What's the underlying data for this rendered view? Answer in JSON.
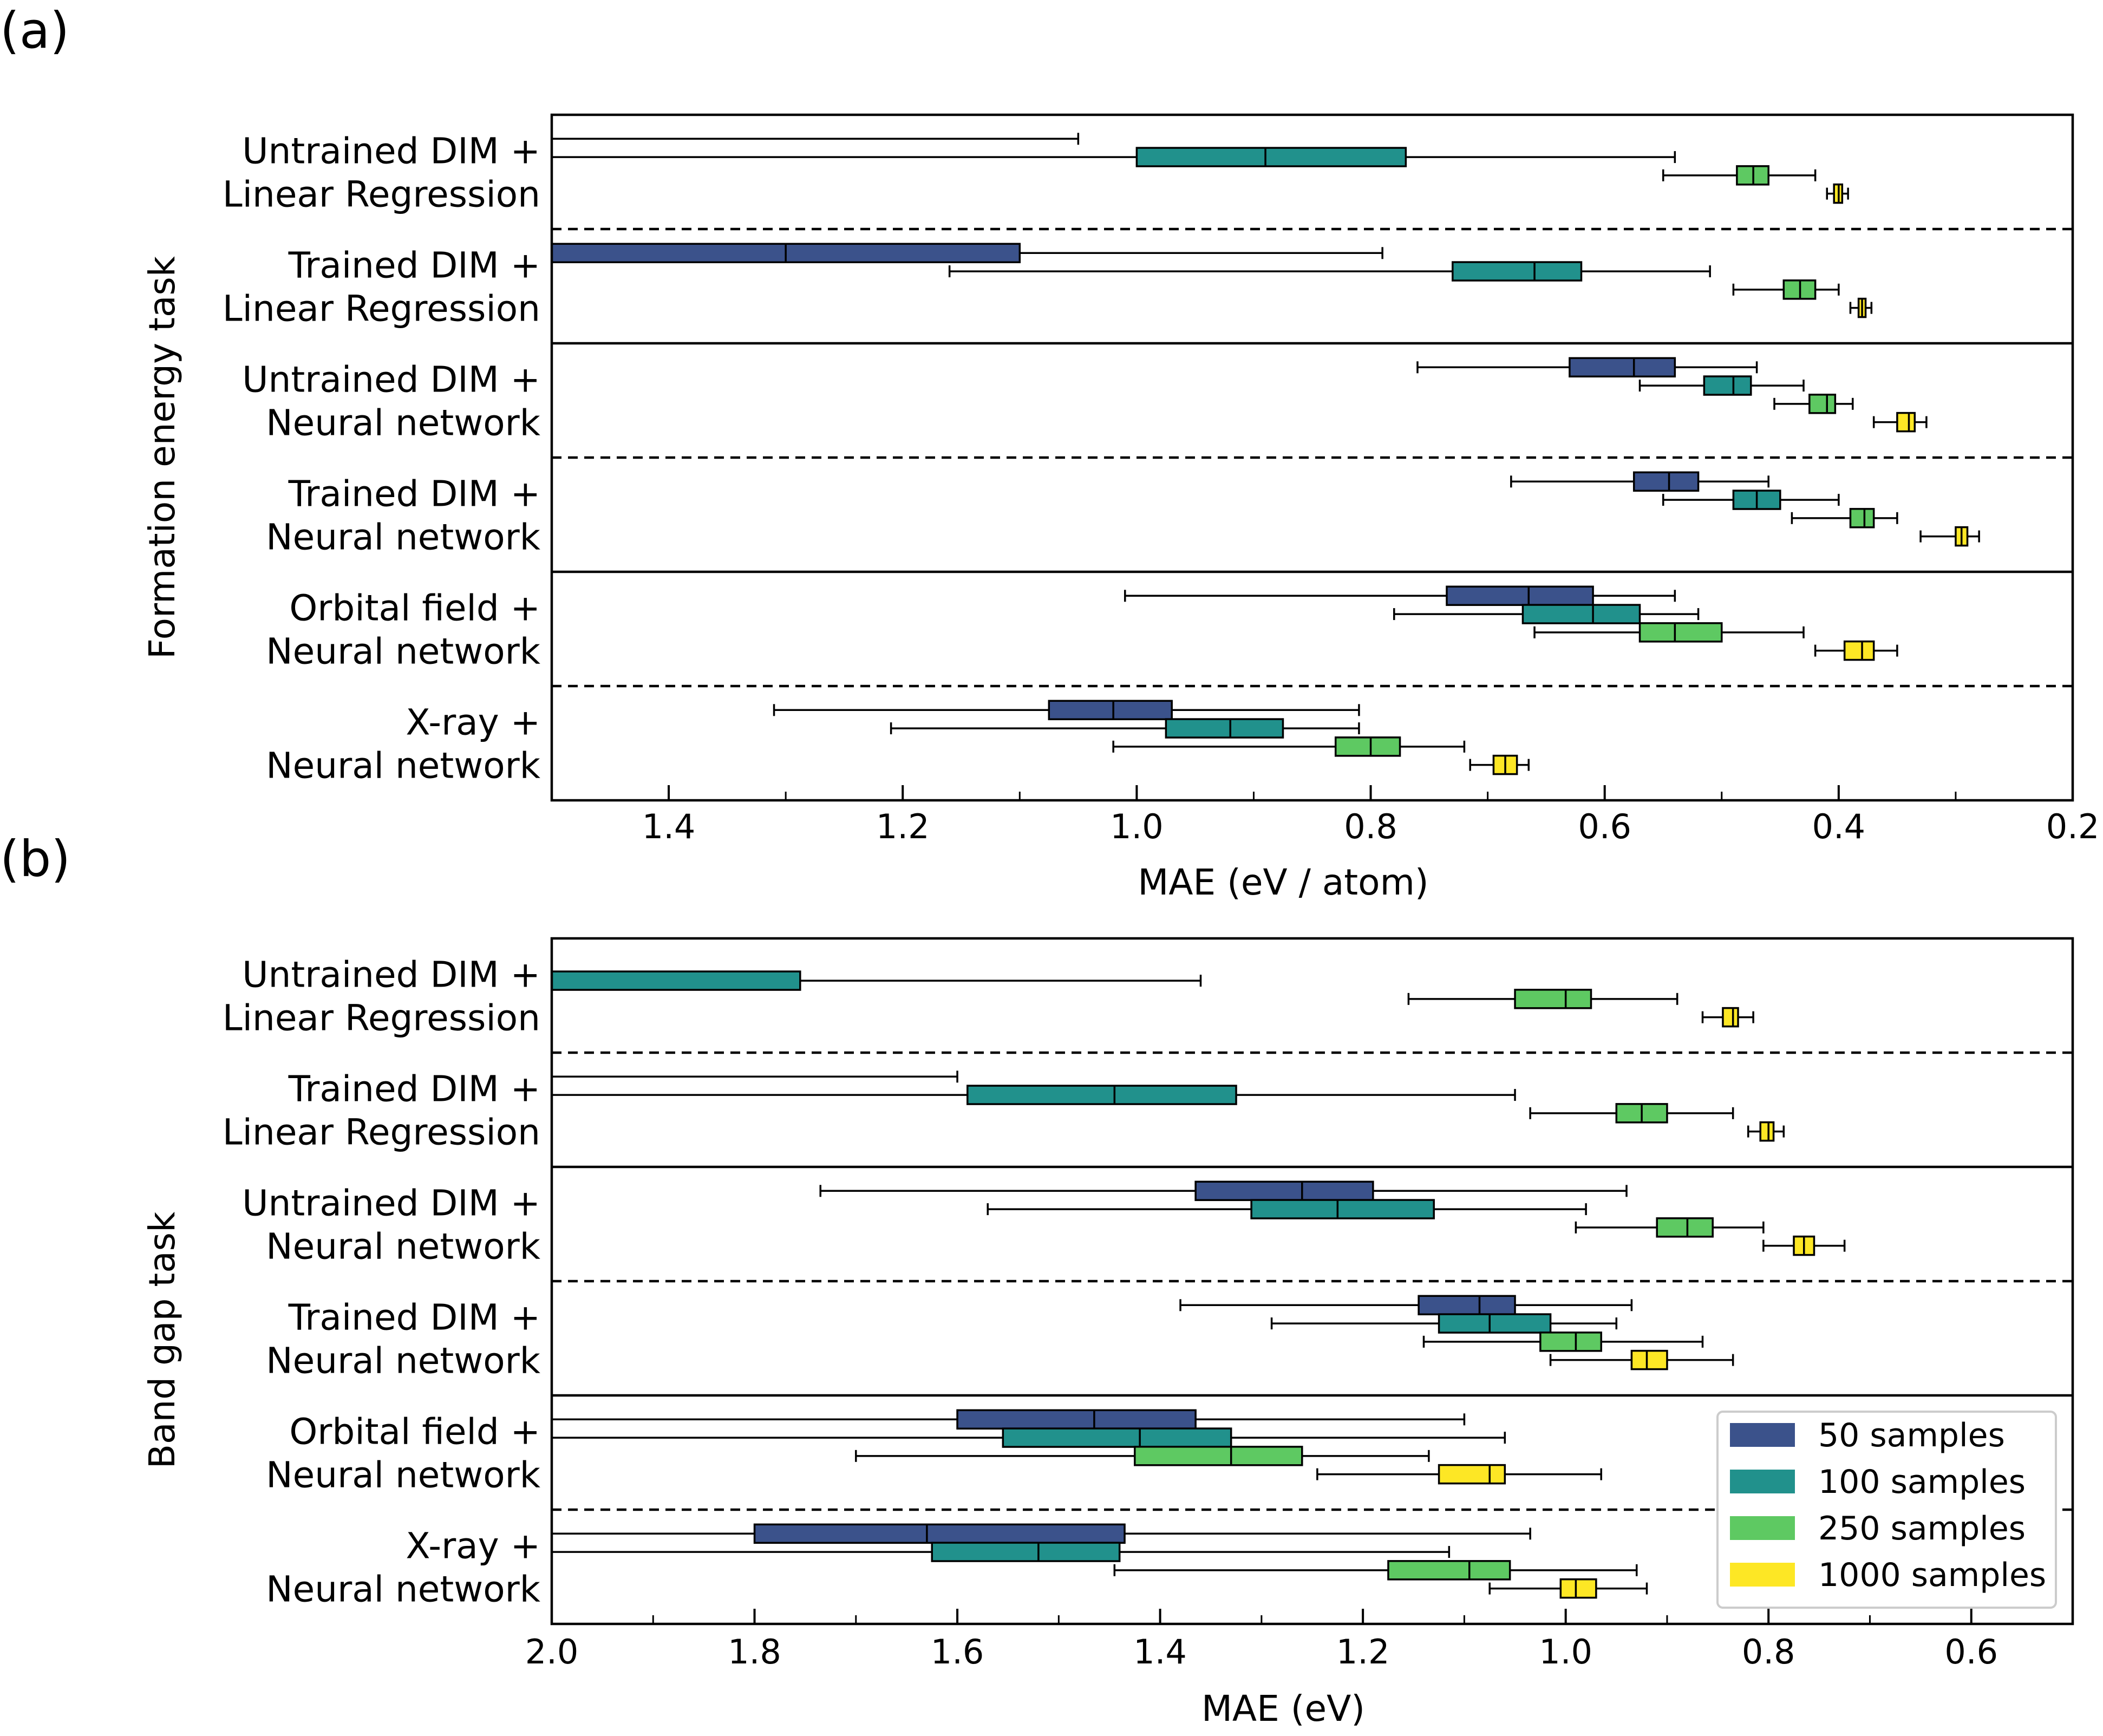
{
  "legend": [
    {
      "label": "50 samples",
      "color": "#3b528b"
    },
    {
      "label": "100 samples",
      "color": "#21918c"
    },
    {
      "label": "250 samples",
      "color": "#5ec962"
    },
    {
      "label": "1000 samples",
      "color": "#fde725"
    }
  ],
  "chart_data": [
    {
      "type": "boxplot",
      "panel_label": "(a)",
      "xlabel": "MAE (eV / atom)",
      "ylabel": "Formation energy task",
      "xlim": [
        1.5,
        0.2
      ],
      "x_inverted": true,
      "xticks": [
        "1.4",
        "1.2",
        "1.0",
        "0.8",
        "0.6",
        "0.4",
        "0.2"
      ],
      "xtick_values": [
        1.4,
        1.2,
        1.0,
        0.8,
        0.6,
        0.4,
        0.2
      ],
      "groups": [
        {
          "label_lines": [
            "Untrained DIM +",
            "Linear Regression"
          ],
          "boxes": [
            {
              "series": "50 samples",
              "whislo": 1.05,
              "q1": 1.5,
              "med": 1.5,
              "q3": 1.5,
              "whishi": 1.5
            },
            {
              "series": "100 samples",
              "whislo": 0.54,
              "q1": 0.77,
              "med": 0.89,
              "q3": 1.0,
              "whishi": 1.5
            },
            {
              "series": "250 samples",
              "whislo": 0.42,
              "q1": 0.46,
              "med": 0.473,
              "q3": 0.487,
              "whishi": 0.55
            },
            {
              "series": "1000 samples",
              "whislo": 0.392,
              "q1": 0.397,
              "med": 0.4,
              "q3": 0.404,
              "whishi": 0.41
            }
          ]
        },
        {
          "label_lines": [
            "Trained DIM +",
            "Linear Regression"
          ],
          "boxes": [
            {
              "series": "50 samples",
              "whislo": 0.79,
              "q1": 1.1,
              "med": 1.3,
              "q3": 1.5,
              "whishi": 1.5
            },
            {
              "series": "100 samples",
              "whislo": 0.51,
              "q1": 0.62,
              "med": 0.66,
              "q3": 0.73,
              "whishi": 1.16
            },
            {
              "series": "250 samples",
              "whislo": 0.4,
              "q1": 0.42,
              "med": 0.433,
              "q3": 0.447,
              "whishi": 0.49
            },
            {
              "series": "1000 samples",
              "whislo": 0.372,
              "q1": 0.377,
              "med": 0.38,
              "q3": 0.383,
              "whishi": 0.39
            }
          ]
        },
        {
          "label_lines": [
            "Untrained DIM +",
            "Neural network"
          ],
          "boxes": [
            {
              "series": "50 samples",
              "whislo": 0.47,
              "q1": 0.54,
              "med": 0.575,
              "q3": 0.63,
              "whishi": 0.76
            },
            {
              "series": "100 samples",
              "whislo": 0.43,
              "q1": 0.475,
              "med": 0.49,
              "q3": 0.515,
              "whishi": 0.57
            },
            {
              "series": "250 samples",
              "whislo": 0.388,
              "q1": 0.403,
              "med": 0.41,
              "q3": 0.425,
              "whishi": 0.455
            },
            {
              "series": "1000 samples",
              "whislo": 0.325,
              "q1": 0.335,
              "med": 0.34,
              "q3": 0.35,
              "whishi": 0.37
            }
          ]
        },
        {
          "label_lines": [
            "Trained DIM +",
            "Neural network"
          ],
          "boxes": [
            {
              "series": "50 samples",
              "whislo": 0.46,
              "q1": 0.52,
              "med": 0.545,
              "q3": 0.575,
              "whishi": 0.68
            },
            {
              "series": "100 samples",
              "whislo": 0.4,
              "q1": 0.45,
              "med": 0.47,
              "q3": 0.49,
              "whishi": 0.55
            },
            {
              "series": "250 samples",
              "whislo": 0.35,
              "q1": 0.37,
              "med": 0.378,
              "q3": 0.39,
              "whishi": 0.44
            },
            {
              "series": "1000 samples",
              "whislo": 0.28,
              "q1": 0.29,
              "med": 0.295,
              "q3": 0.3,
              "whishi": 0.33
            }
          ]
        },
        {
          "label_lines": [
            "Orbital field +",
            "Neural network"
          ],
          "boxes": [
            {
              "series": "50 samples",
              "whislo": 0.54,
              "q1": 0.61,
              "med": 0.665,
              "q3": 0.735,
              "whishi": 1.01
            },
            {
              "series": "100 samples",
              "whislo": 0.52,
              "q1": 0.57,
              "med": 0.61,
              "q3": 0.67,
              "whishi": 0.78
            },
            {
              "series": "250 samples",
              "whislo": 0.43,
              "q1": 0.5,
              "med": 0.54,
              "q3": 0.57,
              "whishi": 0.66
            },
            {
              "series": "1000 samples",
              "whislo": 0.35,
              "q1": 0.37,
              "med": 0.38,
              "q3": 0.395,
              "whishi": 0.42
            }
          ]
        },
        {
          "label_lines": [
            "X-ray +",
            "Neural network"
          ],
          "boxes": [
            {
              "series": "50 samples",
              "whislo": 0.81,
              "q1": 0.97,
              "med": 1.02,
              "q3": 1.075,
              "whishi": 1.31
            },
            {
              "series": "100 samples",
              "whislo": 0.81,
              "q1": 0.875,
              "med": 0.92,
              "q3": 0.975,
              "whishi": 1.21
            },
            {
              "series": "250 samples",
              "whislo": 0.72,
              "q1": 0.775,
              "med": 0.8,
              "q3": 0.83,
              "whishi": 1.02
            },
            {
              "series": "1000 samples",
              "whislo": 0.665,
              "q1": 0.675,
              "med": 0.685,
              "q3": 0.695,
              "whishi": 0.715
            }
          ]
        }
      ]
    },
    {
      "type": "boxplot",
      "panel_label": "(b)",
      "xlabel": "MAE (eV)",
      "ylabel": "Band gap task",
      "xlim": [
        2.0,
        0.5
      ],
      "x_inverted": true,
      "xticks": [
        "2.0",
        "1.8",
        "1.6",
        "1.4",
        "1.2",
        "1.0",
        "0.8",
        "0.6"
      ],
      "xtick_values": [
        2.0,
        1.8,
        1.6,
        1.4,
        1.2,
        1.0,
        0.8,
        0.6
      ],
      "groups": [
        {
          "label_lines": [
            "Untrained DIM +",
            "Linear Regression"
          ],
          "boxes": [
            {
              "series": "50 samples",
              "whislo": 2.0,
              "q1": 2.0,
              "med": 2.0,
              "q3": 2.0,
              "whishi": 2.0
            },
            {
              "series": "100 samples",
              "whislo": 1.36,
              "q1": 1.755,
              "med": 2.0,
              "q3": 2.0,
              "whishi": 2.0
            },
            {
              "series": "250 samples",
              "whislo": 0.89,
              "q1": 0.975,
              "med": 1.0,
              "q3": 1.05,
              "whishi": 1.155
            },
            {
              "series": "1000 samples",
              "whislo": 0.815,
              "q1": 0.83,
              "med": 0.835,
              "q3": 0.845,
              "whishi": 0.865
            }
          ]
        },
        {
          "label_lines": [
            "Trained DIM +",
            "Linear Regression"
          ],
          "boxes": [
            {
              "series": "50 samples",
              "whislo": 1.6,
              "q1": 2.0,
              "med": 2.0,
              "q3": 2.0,
              "whishi": 2.0
            },
            {
              "series": "100 samples",
              "whislo": 1.05,
              "q1": 1.325,
              "med": 1.445,
              "q3": 1.59,
              "whishi": 2.0
            },
            {
              "series": "250 samples",
              "whislo": 0.835,
              "q1": 0.9,
              "med": 0.925,
              "q3": 0.95,
              "whishi": 1.035
            },
            {
              "series": "1000 samples",
              "whislo": 0.785,
              "q1": 0.795,
              "med": 0.8,
              "q3": 0.808,
              "whishi": 0.82
            }
          ]
        },
        {
          "label_lines": [
            "Untrained DIM +",
            "Neural network"
          ],
          "boxes": [
            {
              "series": "50 samples",
              "whislo": 0.94,
              "q1": 1.19,
              "med": 1.26,
              "q3": 1.365,
              "whishi": 1.735
            },
            {
              "series": "100 samples",
              "whislo": 0.98,
              "q1": 1.13,
              "med": 1.225,
              "q3": 1.31,
              "whishi": 1.57
            },
            {
              "series": "250 samples",
              "whislo": 0.805,
              "q1": 0.855,
              "med": 0.88,
              "q3": 0.91,
              "whishi": 0.99
            },
            {
              "series": "1000 samples",
              "whislo": 0.725,
              "q1": 0.755,
              "med": 0.765,
              "q3": 0.775,
              "whishi": 0.805
            }
          ]
        },
        {
          "label_lines": [
            "Trained DIM +",
            "Neural network"
          ],
          "boxes": [
            {
              "series": "50 samples",
              "whislo": 0.935,
              "q1": 1.05,
              "med": 1.085,
              "q3": 1.145,
              "whishi": 1.38
            },
            {
              "series": "100 samples",
              "whislo": 0.95,
              "q1": 1.015,
              "med": 1.075,
              "q3": 1.125,
              "whishi": 1.29
            },
            {
              "series": "250 samples",
              "whislo": 0.865,
              "q1": 0.965,
              "med": 0.99,
              "q3": 1.025,
              "whishi": 1.14
            },
            {
              "series": "1000 samples",
              "whislo": 0.835,
              "q1": 0.9,
              "med": 0.92,
              "q3": 0.935,
              "whishi": 1.015
            }
          ]
        },
        {
          "label_lines": [
            "Orbital field +",
            "Neural network"
          ],
          "boxes": [
            {
              "series": "50 samples",
              "whislo": 1.1,
              "q1": 1.365,
              "med": 1.465,
              "q3": 1.6,
              "whishi": 2.0
            },
            {
              "series": "100 samples",
              "whislo": 1.06,
              "q1": 1.33,
              "med": 1.42,
              "q3": 1.555,
              "whishi": 2.0
            },
            {
              "series": "250 samples",
              "whislo": 1.135,
              "q1": 1.26,
              "med": 1.33,
              "q3": 1.425,
              "whishi": 1.7
            },
            {
              "series": "1000 samples",
              "whislo": 0.965,
              "q1": 1.06,
              "med": 1.075,
              "q3": 1.125,
              "whishi": 1.245
            }
          ]
        },
        {
          "label_lines": [
            "X-ray +",
            "Neural network"
          ],
          "boxes": [
            {
              "series": "50 samples",
              "whislo": 1.035,
              "q1": 1.435,
              "med": 1.63,
              "q3": 1.8,
              "whishi": 2.0
            },
            {
              "series": "100 samples",
              "whislo": 1.115,
              "q1": 1.44,
              "med": 1.52,
              "q3": 1.625,
              "whishi": 2.0
            },
            {
              "series": "250 samples",
              "whislo": 0.93,
              "q1": 1.055,
              "med": 1.095,
              "q3": 1.175,
              "whishi": 1.445
            },
            {
              "series": "1000 samples",
              "whislo": 0.92,
              "q1": 0.97,
              "med": 0.99,
              "q3": 1.005,
              "whishi": 1.075
            }
          ]
        }
      ]
    }
  ]
}
